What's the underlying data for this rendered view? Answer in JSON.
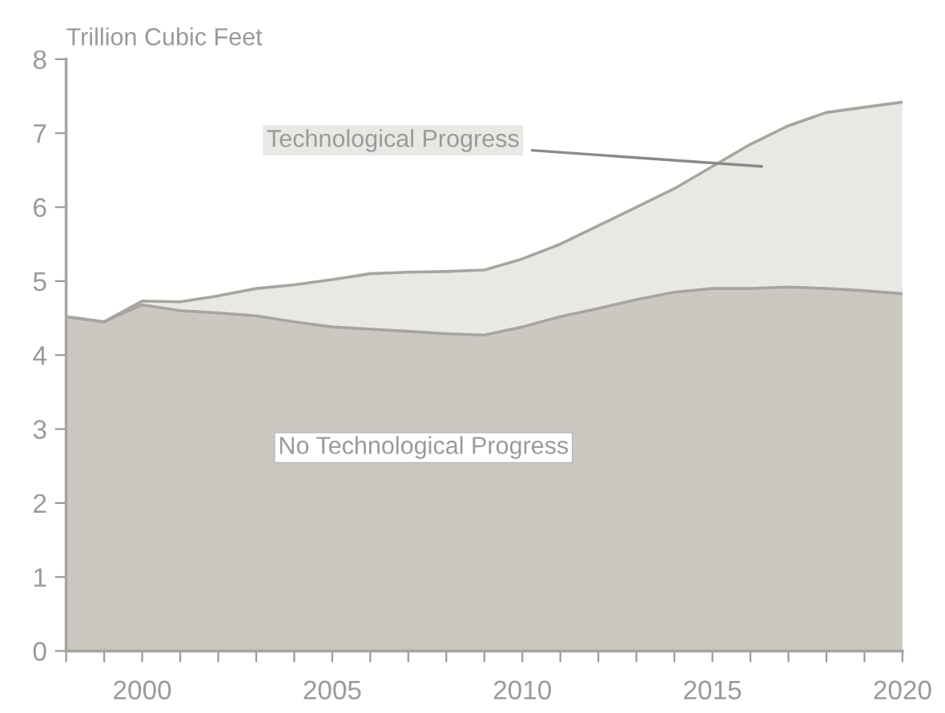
{
  "chart_data": {
    "type": "area",
    "ylabel": "Trillion Cubic Feet",
    "x": [
      1998,
      1999,
      2000,
      2001,
      2002,
      2003,
      2004,
      2005,
      2006,
      2007,
      2008,
      2009,
      2010,
      2011,
      2012,
      2013,
      2014,
      2015,
      2016,
      2017,
      2018,
      2019,
      2020
    ],
    "series": [
      {
        "name": "Technological Progress",
        "color": "#e8e8e5",
        "values": [
          4.52,
          4.45,
          4.73,
          4.72,
          4.8,
          4.9,
          4.95,
          5.02,
          5.1,
          5.12,
          5.13,
          5.15,
          5.3,
          5.5,
          5.75,
          6.0,
          6.25,
          6.55,
          6.85,
          7.1,
          7.28,
          7.35,
          7.42
        ]
      },
      {
        "name": "No Technological Progress",
        "color": "#cbc8c2",
        "values": [
          4.52,
          4.45,
          4.68,
          4.6,
          4.57,
          4.53,
          4.45,
          4.38,
          4.35,
          4.32,
          4.29,
          4.27,
          4.38,
          4.52,
          4.63,
          4.75,
          4.85,
          4.9,
          4.9,
          4.92,
          4.9,
          4.87,
          4.83
        ]
      }
    ],
    "xlim": [
      1998,
      2020
    ],
    "xticks": [
      {
        "value": 1998,
        "label": null
      },
      {
        "value": 1999,
        "label": null
      },
      2000,
      {
        "value": 2001,
        "label": null
      },
      {
        "value": 2002,
        "label": null
      },
      {
        "value": 2003,
        "label": null
      },
      {
        "value": 2004,
        "label": null
      },
      2005,
      {
        "value": 2006,
        "label": null
      },
      {
        "value": 2007,
        "label": null
      },
      {
        "value": 2008,
        "label": null
      },
      {
        "value": 2009,
        "label": null
      },
      2010,
      {
        "value": 2011,
        "label": null
      },
      {
        "value": 2012,
        "label": null
      },
      {
        "value": 2013,
        "label": null
      },
      {
        "value": 2014,
        "label": null
      },
      2015,
      {
        "value": 2016,
        "label": null
      },
      {
        "value": 2017,
        "label": null
      },
      {
        "value": 2018,
        "label": null
      },
      {
        "value": 2019,
        "label": null
      },
      2020
    ],
    "ylim": [
      0,
      8
    ],
    "yticks": [
      0,
      1,
      2,
      3,
      4,
      5,
      6,
      7,
      8
    ],
    "grid": false,
    "legend": false
  }
}
